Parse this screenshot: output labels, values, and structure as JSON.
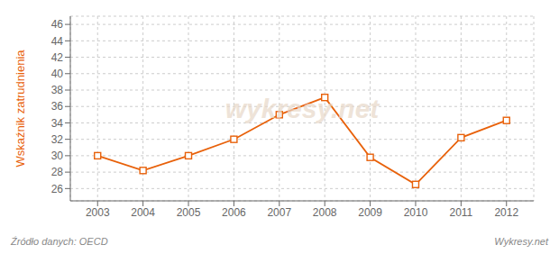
{
  "chart_data": {
    "type": "line",
    "x": [
      2003,
      2004,
      2005,
      2006,
      2007,
      2008,
      2009,
      2010,
      2011,
      2012
    ],
    "values": [
      30.0,
      28.2,
      30.0,
      32.0,
      35.0,
      37.1,
      29.8,
      26.5,
      32.2,
      34.3
    ],
    "color": "#e8610a",
    "marker": "square",
    "line_style": "solid",
    "ylabel": "Wskaźnik zatrudnienia",
    "annotations": [
      "wykresy.net",
      "Źródło danych:  OECD",
      "Wykresy.net"
    ],
    "xlim": [
      2002.4,
      2012.6
    ],
    "xticks": [
      2003,
      2004,
      2005,
      2006,
      2007,
      2008,
      2009,
      2010,
      2011,
      2012
    ],
    "ylim": [
      24.5,
      47
    ],
    "yticks": [
      26,
      28,
      30,
      32,
      34,
      36,
      38,
      40,
      42,
      44,
      46
    ],
    "grid": true
  }
}
